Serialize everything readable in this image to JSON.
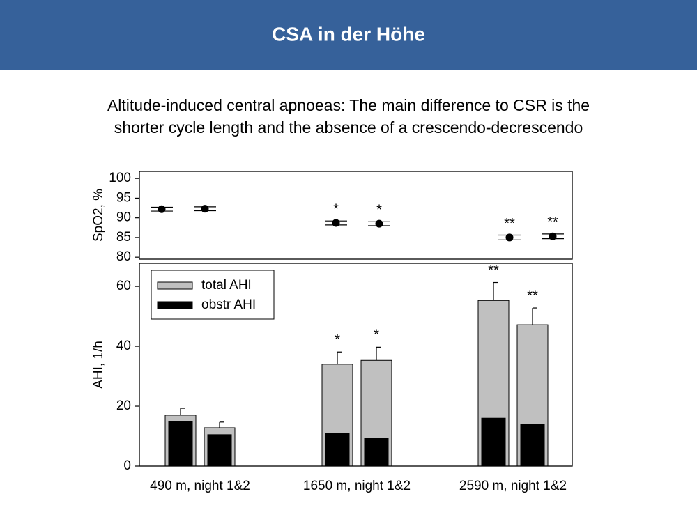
{
  "header": {
    "title": "CSA in der Höhe"
  },
  "subtitle": [
    "Altitude-induced central apnoeas: The main difference to CSR is the",
    "shorter cycle length and the absence of a crescendo-decrescendo"
  ],
  "chart_data": [
    {
      "type": "errorpoint",
      "ylabel": "SpO2, %",
      "ylim": [
        79.5,
        101.8
      ],
      "yticks": [
        80,
        85,
        90,
        95,
        100
      ],
      "color": "#000000",
      "values": [
        [
          92.2,
          92.3
        ],
        [
          88.7,
          88.5
        ],
        [
          85.0,
          85.3
        ]
      ],
      "errors": [
        [
          0.5,
          0.5
        ],
        [
          0.5,
          0.5
        ],
        [
          0.6,
          0.6
        ]
      ],
      "annotations": [
        [
          null,
          null
        ],
        [
          "*",
          "*"
        ],
        [
          "**",
          "**"
        ]
      ]
    },
    {
      "type": "bar",
      "ylabel": "AHI, 1/h",
      "ylim": [
        0,
        67.7
      ],
      "yticks": [
        0,
        20,
        40,
        60
      ],
      "legend": "upper left",
      "categories": [
        "490 m, night 1&2",
        "1650 m, night 1&2",
        "2590 m, night 1&2"
      ],
      "series": [
        {
          "name": "total AHI",
          "color": "#c0c0c0",
          "values": [
            [
              17.0,
              12.8
            ],
            [
              34.0,
              35.3
            ],
            [
              55.3,
              47.2
            ]
          ],
          "errors": [
            [
              2.3,
              1.9
            ],
            [
              4.1,
              4.4
            ],
            [
              6.0,
              5.6
            ]
          ]
        },
        {
          "name": "obstr AHI",
          "color": "#000000",
          "values": [
            [
              14.9,
              10.5
            ],
            [
              10.9,
              9.3
            ],
            [
              16.0,
              14.0
            ]
          ]
        }
      ],
      "annotations": [
        [
          null,
          null
        ],
        [
          "*",
          "*"
        ],
        [
          "**",
          "**"
        ]
      ]
    }
  ]
}
